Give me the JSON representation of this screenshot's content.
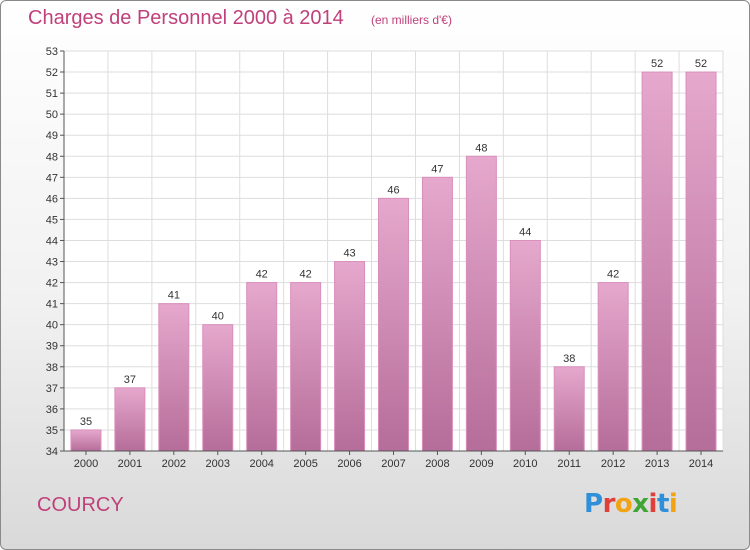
{
  "header": {
    "title": "Charges de Personnel 2000 à 2014",
    "subtitle": "(en milliers d'€)"
  },
  "footer": {
    "commune": "COURCY",
    "logo_text": "Proxiti",
    "logo_colors": [
      "#2f8fd8",
      "#e0403a",
      "#f2a313",
      "#3fa535",
      "#e0403a",
      "#2f8fd8",
      "#f2a313"
    ]
  },
  "colors": {
    "title": "#c0407a",
    "bar_light": "#e6a8cd",
    "bar_dark": "#b56d99"
  },
  "chart_data": {
    "type": "bar",
    "title": "Charges de Personnel 2000 à 2014",
    "subtitle": "(en milliers d'€)",
    "xlabel": "",
    "ylabel": "",
    "categories": [
      "2000",
      "2001",
      "2002",
      "2003",
      "2004",
      "2005",
      "2006",
      "2007",
      "2008",
      "2009",
      "2010",
      "2011",
      "2012",
      "2013",
      "2014"
    ],
    "values": [
      35,
      37,
      41,
      40,
      42,
      42,
      43,
      46,
      47,
      48,
      44,
      38,
      42,
      52,
      52
    ],
    "ylim": [
      34,
      53
    ],
    "yticks": [
      34,
      35,
      36,
      37,
      38,
      39,
      40,
      41,
      42,
      43,
      44,
      45,
      46,
      47,
      48,
      49,
      50,
      51,
      52,
      53
    ],
    "grid": true,
    "data_labels": true
  }
}
